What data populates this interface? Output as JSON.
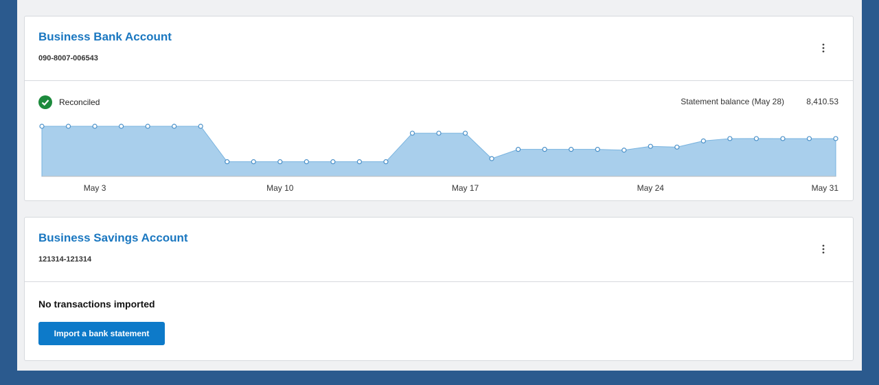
{
  "accounts": [
    {
      "name": "Business Bank Account",
      "number": "090-8007-006543",
      "status": "Reconciled",
      "statement_label": "Statement balance (May 28)",
      "balance": "8,410.53",
      "chart": {
        "type": "area",
        "color": "#a9cfec",
        "x": [
          "May 1",
          "May 2",
          "May 3",
          "May 4",
          "May 5",
          "May 6",
          "May 7",
          "May 8",
          "May 9",
          "May 10",
          "May 11",
          "May 12",
          "May 13",
          "May 14",
          "May 15",
          "May 16",
          "May 17",
          "May 18",
          "May 19",
          "May 20",
          "May 21",
          "May 22",
          "May 23",
          "May 24",
          "May 25",
          "May 26",
          "May 27",
          "May 28",
          "May 29",
          "May 30",
          "May 31"
        ],
        "values": [
          11150,
          11150,
          11150,
          11150,
          11150,
          11150,
          11150,
          3260,
          3260,
          3260,
          3260,
          3260,
          3260,
          3260,
          9610,
          9610,
          9610,
          3950,
          6010,
          6010,
          6010,
          6010,
          5840,
          6690,
          6520,
          7890,
          8410,
          8410.53,
          8410,
          8410,
          8410
        ],
        "xticks": [
          "May 3",
          "May 10",
          "May 17",
          "May 24",
          "May 31"
        ]
      }
    },
    {
      "name": "Business Savings Account",
      "number": "121314-121314",
      "message": "No transactions imported",
      "button": "Import a bank statement"
    }
  ]
}
